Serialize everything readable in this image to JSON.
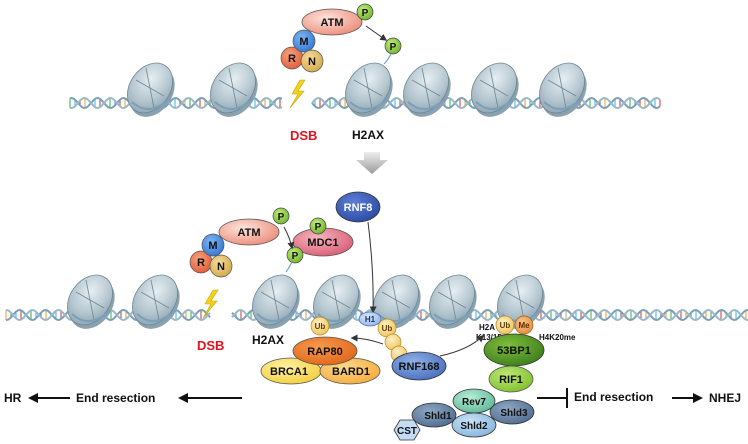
{
  "top_panel": {
    "atm": "ATM",
    "p_on_atm": "P",
    "p_transferred": "P",
    "mrn": {
      "r": "R",
      "m": "M",
      "n": "N"
    },
    "dsb": "DSB",
    "h2ax": "H2AX"
  },
  "bottom_panel": {
    "atm": "ATM",
    "p_on_atm": "P",
    "mdc1": "MDC1",
    "p_mdc1": "P",
    "p_h2ax": "P",
    "rnf8": "RNF8",
    "mrn": {
      "r": "R",
      "m": "M",
      "n": "N"
    },
    "dsb": "DSB",
    "h2ax": "H2AX",
    "h1": "H1",
    "ub_h1": "Ub",
    "ub_left": "Ub",
    "ub_right": "Ub",
    "me": "Me",
    "h2a_k13_15": [
      "H2A",
      "K13/15"
    ],
    "h4k20me": "H4K20me",
    "rap80": "RAP80",
    "brca1": "BRCA1",
    "bard1": "BARD1",
    "rnf168": "RNF168",
    "p53bp1": "53BP1",
    "rif1": "RIF1",
    "rev7": "Rev7",
    "shld1": "Shld1",
    "shld2": "Shld2",
    "shld3": "Shld3",
    "cst": "CST"
  },
  "pathways": {
    "hr": "HR",
    "left_resection": "End resection",
    "right_resection": "End resection",
    "nhej": "NHEJ"
  }
}
